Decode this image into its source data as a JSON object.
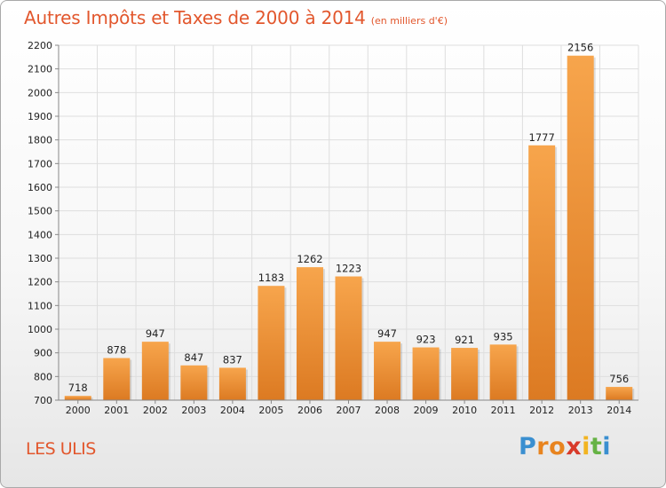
{
  "chart_data": {
    "type": "bar",
    "title": "Autres Impôts et Taxes de 2000 à 2014",
    "subtitle": "(en milliers d'€)",
    "categories": [
      "2000",
      "2001",
      "2002",
      "2003",
      "2004",
      "2005",
      "2006",
      "2007",
      "2008",
      "2009",
      "2010",
      "2011",
      "2012",
      "2013",
      "2014"
    ],
    "values": [
      718,
      878,
      947,
      847,
      837,
      1183,
      1262,
      1223,
      947,
      923,
      921,
      935,
      1777,
      2156,
      756
    ],
    "ylim": [
      700,
      2200
    ],
    "yticks": [
      700,
      800,
      900,
      1000,
      1100,
      1200,
      1300,
      1400,
      1500,
      1600,
      1700,
      1800,
      1900,
      2000,
      2100,
      2200
    ],
    "grid": true,
    "bar_color_top": "#f7a54c",
    "bar_color_bottom": "#dc7a22"
  },
  "commune": "LES ULIS",
  "brand": {
    "letters": [
      "P",
      "r",
      "o",
      "x",
      "i",
      "t",
      "i"
    ],
    "colors": [
      "#3a8fd0",
      "#e8841f",
      "#e8841f",
      "#d83a2a",
      "#f2b421",
      "#66b345",
      "#3a8fd0"
    ]
  }
}
